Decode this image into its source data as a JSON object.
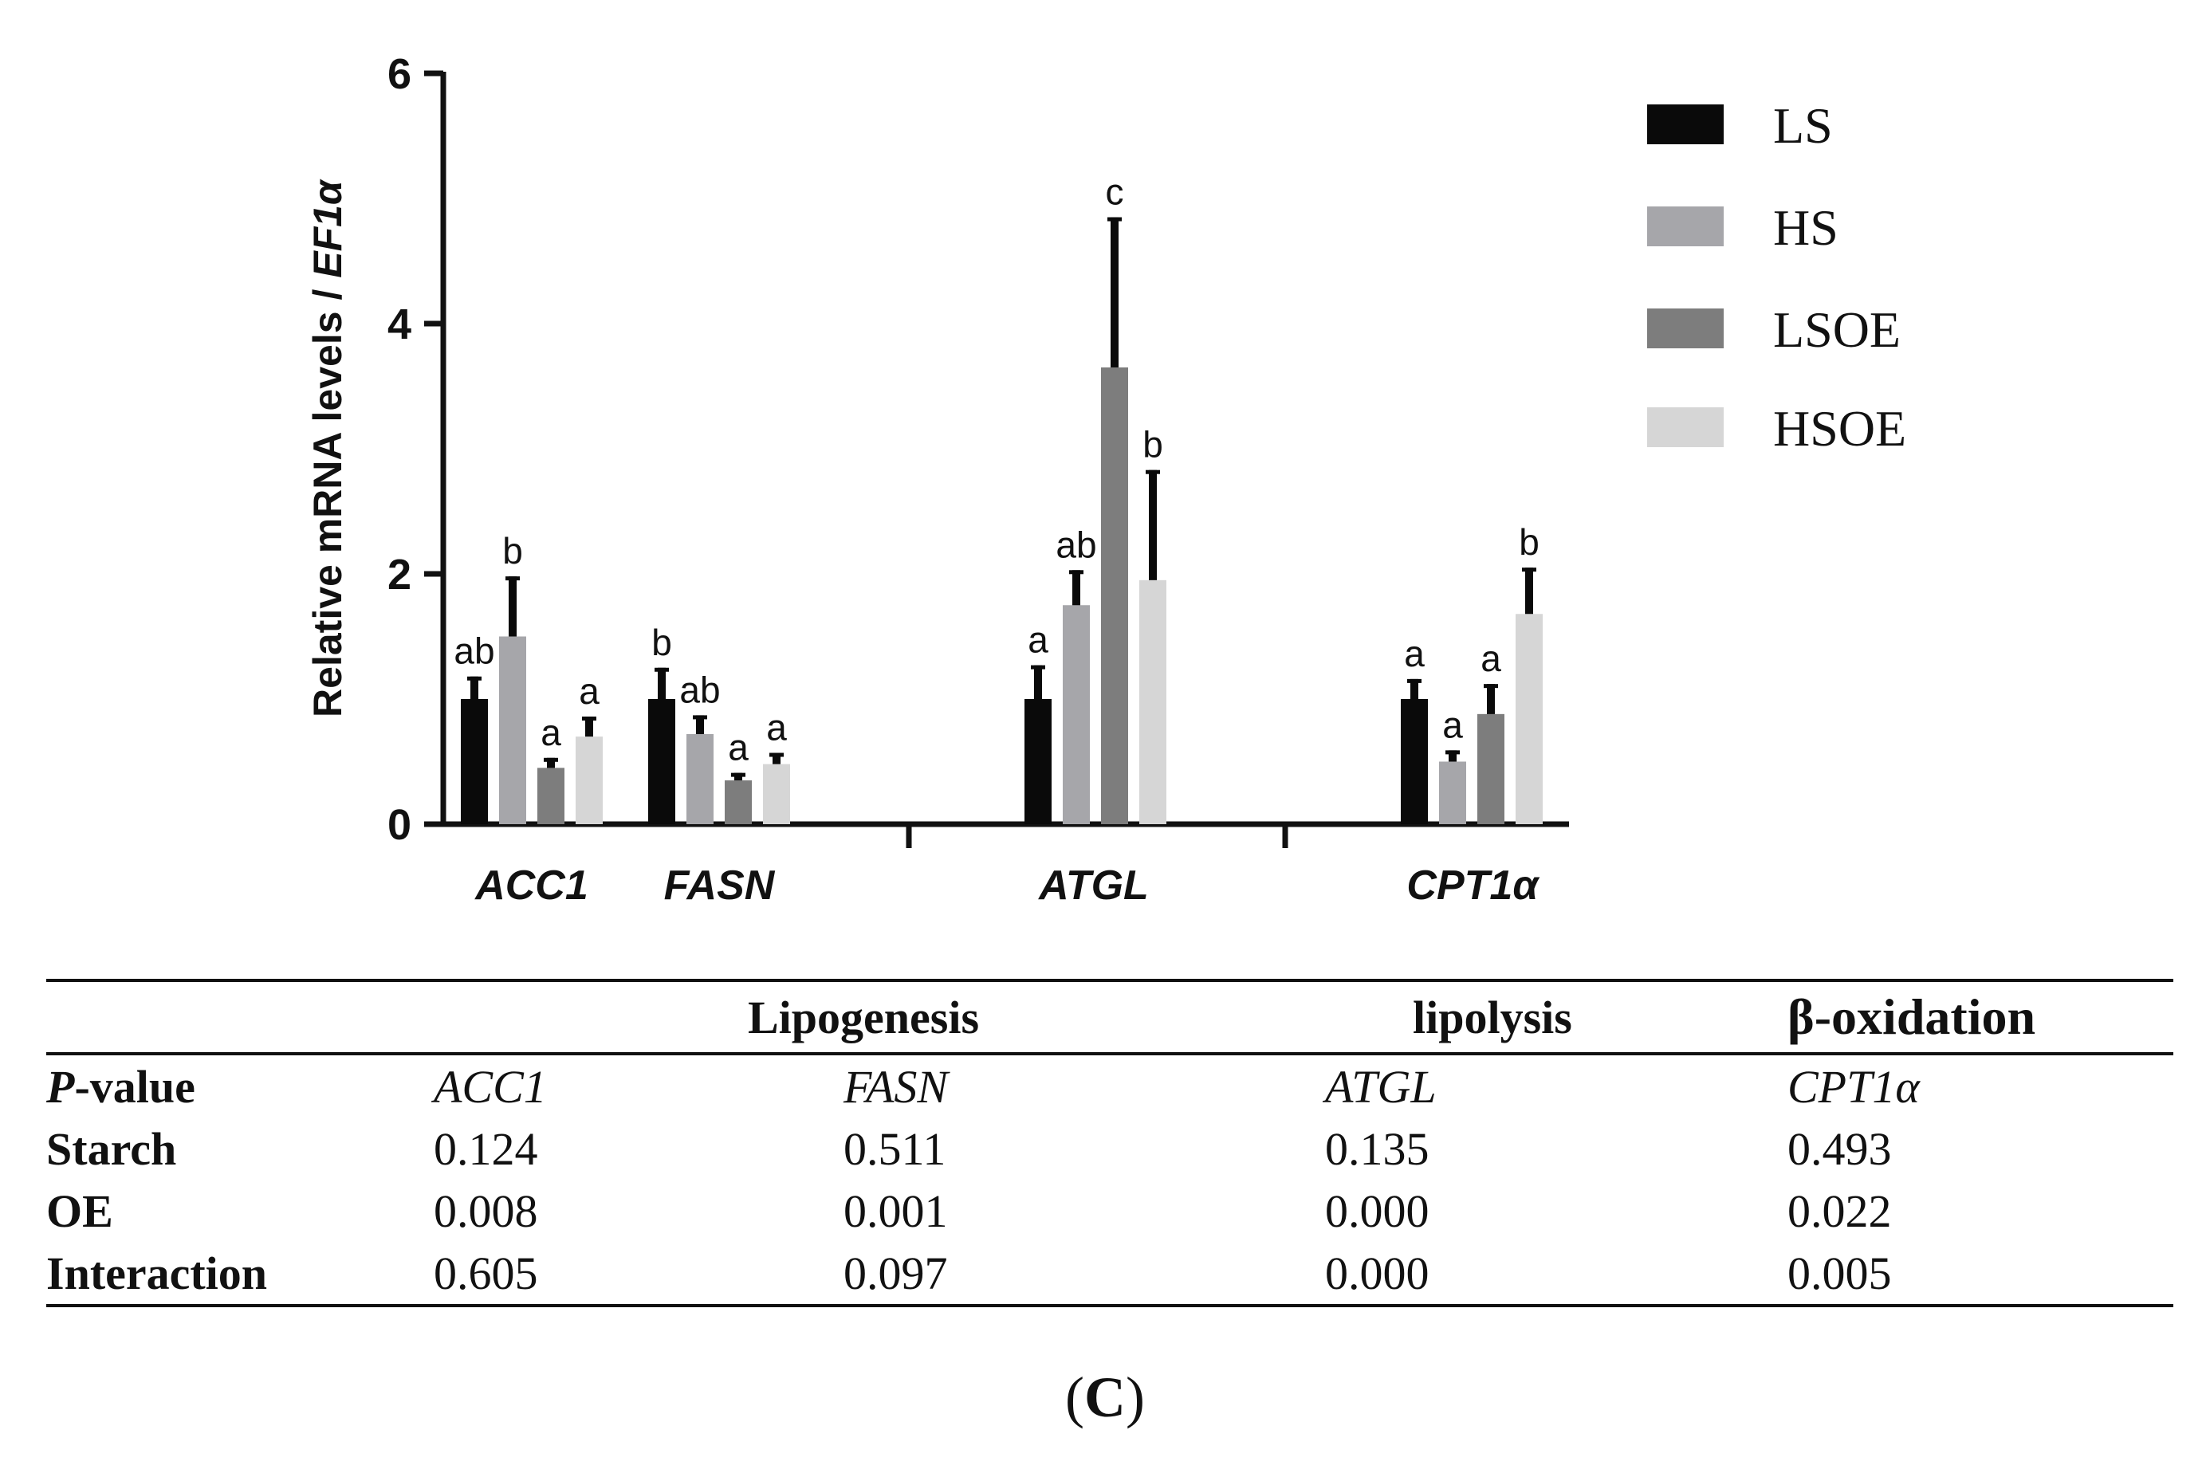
{
  "chart_data": {
    "type": "bar",
    "ylabel_main": "Relative mRNA levels / ",
    "ylabel_italic": "EF1α",
    "ylim": [
      0,
      6
    ],
    "yticks": [
      "0",
      "2",
      "4",
      "6"
    ],
    "categories": [
      "ACC1",
      "FASN",
      "ATGL",
      "CPT1α"
    ],
    "series": [
      {
        "name": "LS",
        "color": "#0a0a0a",
        "values": [
          1.0,
          1.0,
          1.0,
          1.0
        ],
        "errors": [
          0.18,
          0.25,
          0.27,
          0.16
        ]
      },
      {
        "name": "HS",
        "color": "#a6a6aa",
        "values": [
          1.5,
          0.72,
          1.75,
          0.5
        ],
        "errors": [
          0.48,
          0.15,
          0.28,
          0.09
        ]
      },
      {
        "name": "LSOE",
        "color": "#7d7d7d",
        "values": [
          0.45,
          0.35,
          3.65,
          0.88
        ],
        "errors": [
          0.08,
          0.06,
          1.2,
          0.24
        ]
      },
      {
        "name": "HSOE",
        "color": "#d6d6d6",
        "values": [
          0.7,
          0.48,
          1.95,
          1.68
        ],
        "errors": [
          0.16,
          0.09,
          0.88,
          0.37
        ]
      }
    ],
    "significance": [
      [
        "ab",
        "b",
        "a",
        "a"
      ],
      [
        "b",
        "ab",
        "a",
        "a"
      ],
      [
        "a",
        "ab",
        "c",
        "b"
      ],
      [
        "a",
        "a",
        "a",
        "b"
      ]
    ],
    "legend_position": "top-right"
  },
  "table": {
    "headers": {
      "lipogenesis": "Lipogenesis",
      "lipolysis": "lipolysis",
      "boxidation": "β-oxidation"
    },
    "pvalue_italic": "P",
    "pvalue_rest": "-value",
    "genes": [
      "ACC1",
      "FASN",
      "ATGL",
      "CPT1α"
    ],
    "rows": [
      {
        "label": "Starch",
        "values": [
          "0.124",
          "0.511",
          "0.135",
          "0.493"
        ]
      },
      {
        "label": "OE",
        "values": [
          "0.008",
          "0.001",
          "0.000",
          "0.022"
        ]
      },
      {
        "label": "Interaction",
        "values": [
          "0.605",
          "0.097",
          "0.000",
          "0.005"
        ]
      }
    ]
  },
  "caption": {
    "open": "(",
    "letter": "C",
    "close": ")"
  }
}
